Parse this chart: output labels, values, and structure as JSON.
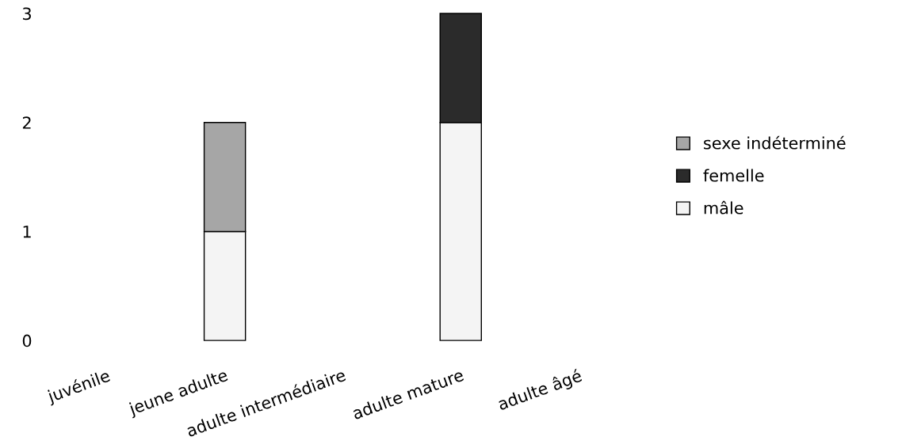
{
  "chart_data": {
    "type": "bar",
    "stacked": true,
    "categories": [
      "juvénile",
      "jeune adulte",
      "adulte intermédiaire",
      "adulte mature",
      "adulte âgé"
    ],
    "series": [
      {
        "name": "mâle",
        "color": "#f4f4f4",
        "values": [
          null,
          1,
          null,
          2,
          null
        ]
      },
      {
        "name": "femelle",
        "color": "#2b2b2b",
        "values": [
          null,
          null,
          null,
          1,
          null
        ]
      },
      {
        "name": "sexe indéterminé",
        "color": "#a6a6a6",
        "values": [
          null,
          1,
          null,
          null,
          null
        ]
      }
    ],
    "ylim": [
      0,
      3
    ],
    "yticks": [
      0,
      1,
      2,
      3
    ],
    "legend": "right",
    "grid": false
  }
}
